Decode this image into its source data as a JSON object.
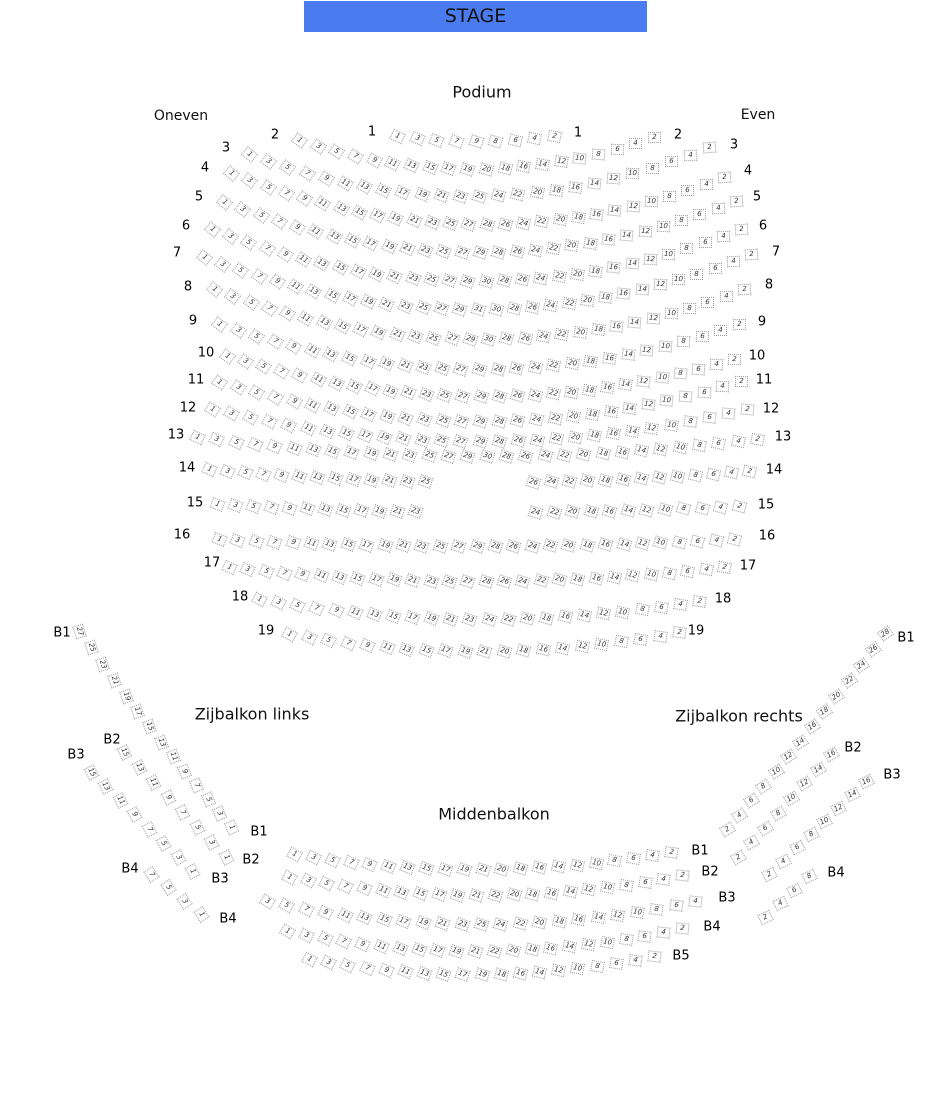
{
  "stage": {
    "label": "STAGE",
    "color": "#4a7bef"
  },
  "titles": {
    "podium": "Podium",
    "odd_side": "Oneven",
    "even_side": "Even",
    "side_left": "Zijbalkon links",
    "side_right": "Zijbalkon rechts",
    "middle": "Middenbalkon"
  },
  "orchestra": {
    "rows": [
      {
        "label": "1",
        "odd": [
          1,
          9
        ],
        "even": [
          8,
          2
        ]
      },
      {
        "label": "2",
        "odd": [
          1,
          19
        ],
        "even": [
          20,
          2
        ]
      },
      {
        "label": "3",
        "odd": [
          1,
          25
        ],
        "even": [
          24,
          2
        ]
      },
      {
        "label": "4",
        "odd": [
          1,
          27
        ],
        "even": [
          28,
          2
        ]
      },
      {
        "label": "5",
        "odd": [
          1,
          29
        ],
        "even": [
          28,
          2
        ]
      },
      {
        "label": "6",
        "odd": [
          1,
          29
        ],
        "even": [
          30,
          2
        ]
      },
      {
        "label": "7",
        "odd": [
          1,
          31
        ],
        "even": [
          30,
          2
        ]
      },
      {
        "label": "8",
        "odd": [
          1,
          29
        ],
        "even": [
          30,
          2
        ]
      },
      {
        "label": "9",
        "odd": [
          1,
          29
        ],
        "even": [
          28,
          2
        ]
      },
      {
        "label": "10",
        "odd": [
          1,
          29
        ],
        "even": [
          28,
          2
        ]
      },
      {
        "label": "11",
        "odd": [
          1,
          29
        ],
        "even": [
          28,
          2
        ]
      },
      {
        "label": "12",
        "odd": [
          1,
          29
        ],
        "even": [
          28,
          2
        ]
      },
      {
        "label": "13",
        "odd": [
          1,
          29
        ],
        "even": [
          30,
          2
        ]
      },
      {
        "label": "14",
        "odd": [
          1,
          25
        ],
        "even": [
          26,
          2
        ]
      },
      {
        "label": "15",
        "odd": [
          1,
          23
        ],
        "even": [
          24,
          2
        ]
      },
      {
        "label": "16",
        "odd": [
          1,
          29
        ],
        "even": [
          28,
          2
        ]
      },
      {
        "label": "17",
        "odd": [
          1,
          27
        ],
        "even": [
          28,
          2
        ]
      },
      {
        "label": "18",
        "odd": [
          1,
          23
        ],
        "even": [
          24,
          2
        ]
      },
      {
        "label": "19",
        "odd": [
          1,
          21
        ],
        "even": [
          20,
          2
        ]
      }
    ]
  },
  "side_left": {
    "rows": [
      {
        "label": "B1",
        "odd": [
          27,
          1
        ]
      },
      {
        "label": "B2",
        "odd": [
          15,
          1
        ]
      },
      {
        "label": "B3",
        "odd": [
          15,
          1
        ]
      },
      {
        "label": "B4",
        "odd": [
          7,
          1
        ]
      }
    ]
  },
  "side_right": {
    "rows": [
      {
        "label": "B1",
        "even": [
          28,
          2
        ]
      },
      {
        "label": "B2",
        "even": [
          16,
          2
        ]
      },
      {
        "label": "B3",
        "even": [
          16,
          2
        ]
      },
      {
        "label": "B4",
        "even": [
          8,
          2
        ]
      }
    ]
  },
  "middle": {
    "rows": [
      {
        "label": "B1",
        "odd": [
          1,
          21
        ],
        "even": [
          20,
          2
        ]
      },
      {
        "label": "B2",
        "odd": [
          1,
          21
        ],
        "even": [
          22,
          2
        ]
      },
      {
        "label": "B3",
        "odd": [
          3,
          25
        ],
        "even": [
          24,
          4
        ]
      },
      {
        "label": "B4",
        "odd": [
          1,
          21
        ],
        "even": [
          22,
          2
        ]
      },
      {
        "label": "B5",
        "odd": [
          1,
          19
        ],
        "even": [
          18,
          2
        ]
      }
    ]
  }
}
